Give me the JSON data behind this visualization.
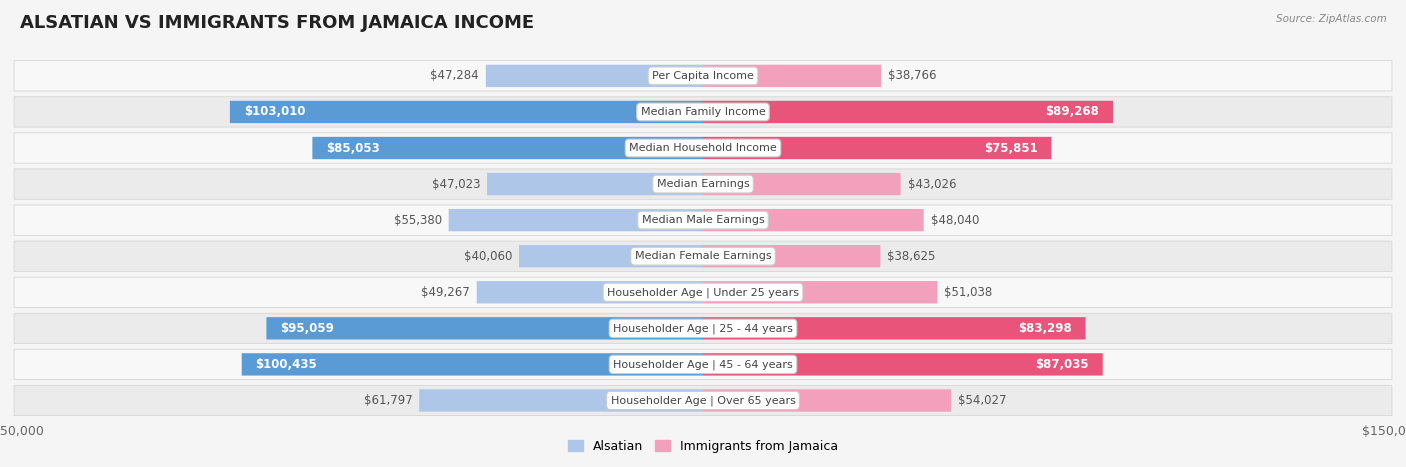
{
  "title": "ALSATIAN VS IMMIGRANTS FROM JAMAICA INCOME",
  "source": "Source: ZipAtlas.com",
  "categories": [
    "Per Capita Income",
    "Median Family Income",
    "Median Household Income",
    "Median Earnings",
    "Median Male Earnings",
    "Median Female Earnings",
    "Householder Age | Under 25 years",
    "Householder Age | 25 - 44 years",
    "Householder Age | 45 - 64 years",
    "Householder Age | Over 65 years"
  ],
  "alsatian_values": [
    47284,
    103010,
    85053,
    47023,
    55380,
    40060,
    49267,
    95059,
    100435,
    61797
  ],
  "jamaica_values": [
    38766,
    89268,
    75851,
    43026,
    48040,
    38625,
    51038,
    83298,
    87035,
    54027
  ],
  "alsatian_labels": [
    "$47,284",
    "$103,010",
    "$85,053",
    "$47,023",
    "$55,380",
    "$40,060",
    "$49,267",
    "$95,059",
    "$100,435",
    "$61,797"
  ],
  "jamaica_labels": [
    "$38,766",
    "$89,268",
    "$75,851",
    "$43,026",
    "$48,040",
    "$38,625",
    "$51,038",
    "$83,298",
    "$87,035",
    "$54,027"
  ],
  "alsatian_color_light": "#aec6e8",
  "alsatian_color_dark": "#5b9bd5",
  "jamaica_color_light": "#f2a0bb",
  "jamaica_color_dark": "#e8547a",
  "max_value": 150000,
  "bar_height": 0.62,
  "bg_color": "#f5f5f5",
  "row_color_light": "#ebebeb",
  "row_color_white": "#f8f8f8",
  "label_fontsize": 8.5,
  "category_fontsize": 8.0,
  "title_fontsize": 13,
  "alsatian_threshold": 70000,
  "jamaica_threshold": 70000
}
